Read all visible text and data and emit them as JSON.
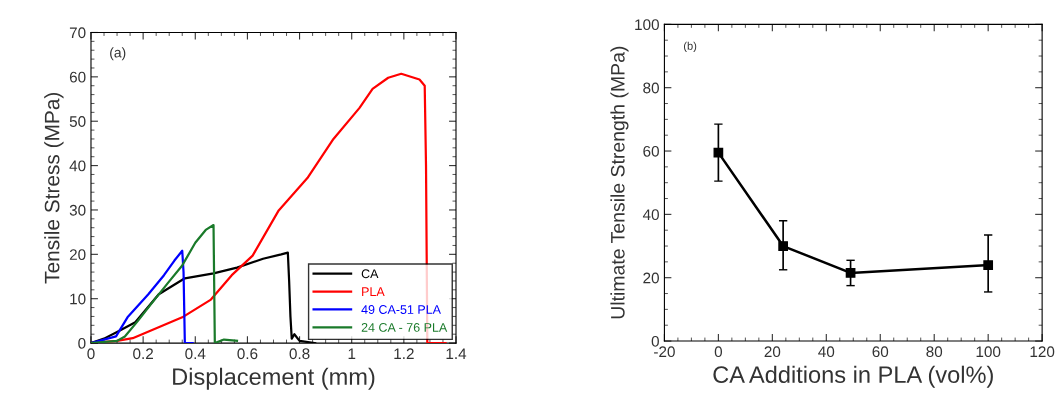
{
  "chart_data": [
    {
      "type": "line",
      "xlabel": "Displacement (mm)",
      "ylabel": "Tensile Stress (MPa)",
      "annotations": [
        "(a)"
      ],
      "xlim": [
        0,
        1.4
      ],
      "xticks": [
        0,
        0.2,
        0.4,
        0.6,
        0.8,
        1,
        1.2,
        1.4
      ],
      "ylim": [
        0,
        70
      ],
      "yticks": [
        0,
        10,
        20,
        30,
        40,
        50,
        60,
        70
      ],
      "legend": "bottom right",
      "grid": false,
      "series": [
        {
          "name": "CA",
          "color": "#000000",
          "x": [
            0,
            0.05,
            0.1,
            0.17,
            0.26,
            0.36,
            0.47,
            0.56,
            0.66,
            0.73,
            0.755,
            0.76,
            0.765,
            0.77,
            0.78,
            0.8,
            0.86
          ],
          "values": [
            0,
            1,
            2.5,
            4.7,
            11,
            14.6,
            15.7,
            17,
            19,
            20,
            20.4,
            14,
            6,
            1,
            2,
            0.5,
            0
          ]
        },
        {
          "name": "PLA",
          "color": "#ff0000",
          "x": [
            0,
            0.1,
            0.16,
            0.35,
            0.46,
            0.54,
            0.62,
            0.72,
            0.83,
            0.93,
            1.03,
            1.08,
            1.14,
            1.19,
            1.26,
            1.28,
            1.285,
            1.29,
            1.36
          ],
          "values": [
            0,
            0.5,
            1.1,
            5.8,
            9.8,
            15.3,
            19.7,
            29.9,
            37.2,
            46,
            53,
            57.3,
            59.8,
            60.7,
            59.4,
            58,
            40,
            0,
            0
          ]
        },
        {
          "name": "49 CA-51 PLA",
          "color": "#0000ff",
          "x": [
            0,
            0.096,
            0.14,
            0.22,
            0.28,
            0.32,
            0.35,
            0.355,
            0.36,
            0.39
          ],
          "values": [
            0,
            1.5,
            5.8,
            11,
            15.3,
            18.6,
            20.8,
            16,
            0,
            0
          ]
        },
        {
          "name": "24 CA - 76 PLA",
          "color": "#1a7a2a",
          "x": [
            0,
            0.1,
            0.13,
            0.18,
            0.24,
            0.3,
            0.35,
            0.4,
            0.44,
            0.47,
            0.475,
            0.51,
            0.56
          ],
          "values": [
            0,
            0.5,
            1.5,
            5,
            9.5,
            13.9,
            17.5,
            22.6,
            25.5,
            26.6,
            0,
            0.8,
            0.5
          ]
        }
      ]
    },
    {
      "type": "line",
      "xlabel": "CA Additions in PLA (vol%)",
      "ylabel": "Ultimate Tensile Strength (MPa)",
      "annotations": [
        "(b)"
      ],
      "xlim": [
        -20,
        120
      ],
      "xticks": [
        -20,
        0,
        20,
        40,
        60,
        80,
        100,
        120
      ],
      "ylim": [
        0,
        100
      ],
      "yticks": [
        0,
        20,
        40,
        60,
        80,
        100
      ],
      "marker": "square",
      "grid": false,
      "series": [
        {
          "color": "#000000",
          "x": [
            0,
            24,
            49,
            100
          ],
          "values": [
            59.5,
            30,
            21.5,
            24
          ],
          "errors": [
            [
              50.5,
              68.5
            ],
            [
              22.5,
              38
            ],
            [
              17.5,
              25.5
            ],
            [
              15.5,
              33.5
            ]
          ]
        }
      ]
    }
  ]
}
